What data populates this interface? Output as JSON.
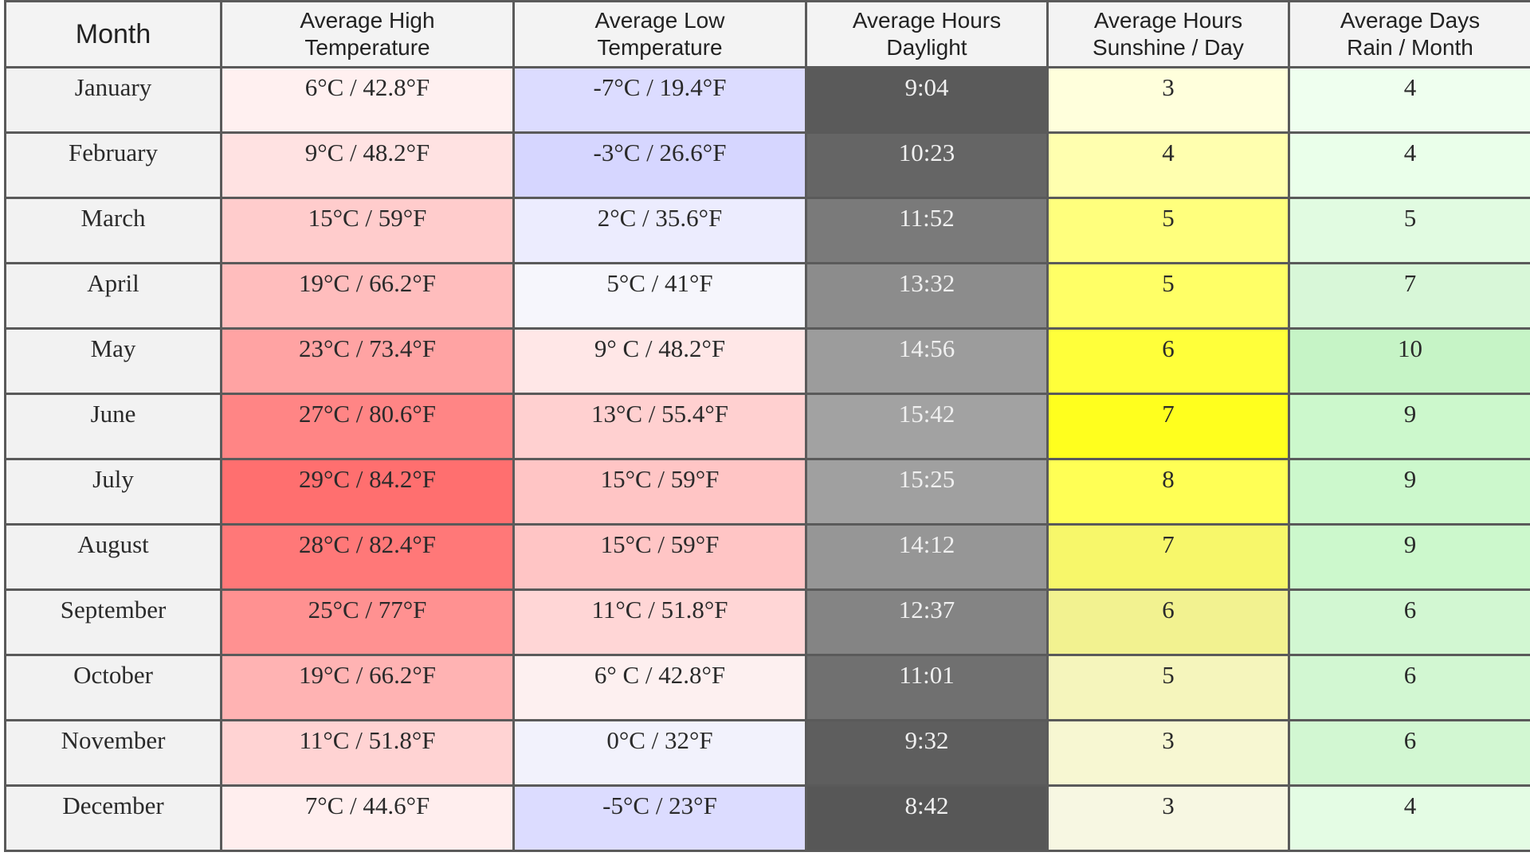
{
  "table": {
    "headers": {
      "month": "Month",
      "high": [
        "Average High",
        "Temperature"
      ],
      "low": [
        "Average Low",
        "Temperature"
      ],
      "daylight": [
        "Average Hours",
        "Daylight"
      ],
      "sunshine": [
        "Average Hours",
        "Sunshine / Day"
      ],
      "rain": [
        "Average Days",
        "Rain / Month"
      ]
    },
    "rows": [
      {
        "month": "January",
        "high": "6°C / 42.8°F",
        "low": "-7°C / 19.4°F",
        "daylight": "9:04",
        "sunshine": "3",
        "rain": "4"
      },
      {
        "month": "February",
        "high": "9°C / 48.2°F",
        "low": "-3°C / 26.6°F",
        "daylight": "10:23",
        "sunshine": "4",
        "rain": "4"
      },
      {
        "month": "March",
        "high": "15°C / 59°F",
        "low": "2°C / 35.6°F",
        "daylight": "11:52",
        "sunshine": "5",
        "rain": "5"
      },
      {
        "month": "April",
        "high": "19°C / 66.2°F",
        "low": "5°C / 41°F",
        "daylight": "13:32",
        "sunshine": "5",
        "rain": "7"
      },
      {
        "month": "May",
        "high": "23°C / 73.4°F",
        "low": "9° C / 48.2°F",
        "daylight": "14:56",
        "sunshine": "6",
        "rain": "10"
      },
      {
        "month": "June",
        "high": "27°C / 80.6°F",
        "low": "13°C / 55.4°F",
        "daylight": "15:42",
        "sunshine": "7",
        "rain": "9"
      },
      {
        "month": "July",
        "high": "29°C / 84.2°F",
        "low": "15°C / 59°F",
        "daylight": "15:25",
        "sunshine": "8",
        "rain": "9"
      },
      {
        "month": "August",
        "high": "28°C / 82.4°F",
        "low": "15°C / 59°F",
        "daylight": "14:12",
        "sunshine": "7",
        "rain": "9"
      },
      {
        "month": "September",
        "high": "25°C / 77°F",
        "low": "11°C / 51.8°F",
        "daylight": "12:37",
        "sunshine": "6",
        "rain": "6"
      },
      {
        "month": "October",
        "high": "19°C / 66.2°F",
        "low": "6° C / 42.8°F",
        "daylight": "11:01",
        "sunshine": "5",
        "rain": "6"
      },
      {
        "month": "November",
        "high": "11°C / 51.8°F",
        "low": "0°C / 32°F",
        "daylight": "9:32",
        "sunshine": "3",
        "rain": "6"
      },
      {
        "month": "December",
        "high": "7°C / 44.6°F",
        "low": "-5°C / 23°F",
        "daylight": "8:42",
        "sunshine": "3",
        "rain": "4"
      }
    ]
  },
  "colors": {
    "border": "#5a5a5a",
    "header_bg": "#f3f3f3",
    "month_bg": "#f2f2f2",
    "high": [
      "#fff0f0",
      "#ffe2e2",
      "#ffcccc",
      "#ffbdbd",
      "#ffa3a3",
      "#ff8585",
      "#ff6f6f",
      "#ff7878",
      "#ff9191",
      "#ffb3b3",
      "#ffd3d3",
      "#ffeeee"
    ],
    "low": [
      "#dcdcff",
      "#d6d6ff",
      "#ececfe",
      "#f6f6fc",
      "#ffe7e7",
      "#ffd0d0",
      "#ffc5c5",
      "#ffc5c5",
      "#ffd6d6",
      "#fdf0f0",
      "#f2f2fc",
      "#dcdcff"
    ],
    "daylight": [
      "#5a5a5a",
      "#656565",
      "#7a7a7a",
      "#8c8c8c",
      "#9c9c9c",
      "#a2a2a2",
      "#a0a0a0",
      "#969696",
      "#848484",
      "#707070",
      "#5e5e5e",
      "#575757"
    ],
    "sunshine": [
      "#ffffdc",
      "#ffffaf",
      "#ffff7d",
      "#ffff66",
      "#ffff3a",
      "#ffff1e",
      "#ffff55",
      "#f7f76a",
      "#f2f290",
      "#f5f5bc",
      "#f7f7d2",
      "#f7f7e2"
    ],
    "rain": [
      "#efffef",
      "#eaffea",
      "#e1fbe1",
      "#d8f7d8",
      "#c6f4c6",
      "#ccf8cc",
      "#ccf8cc",
      "#ccf8cc",
      "#d2f7d2",
      "#d2f7d2",
      "#d2f7d2",
      "#e4fce4"
    ]
  }
}
